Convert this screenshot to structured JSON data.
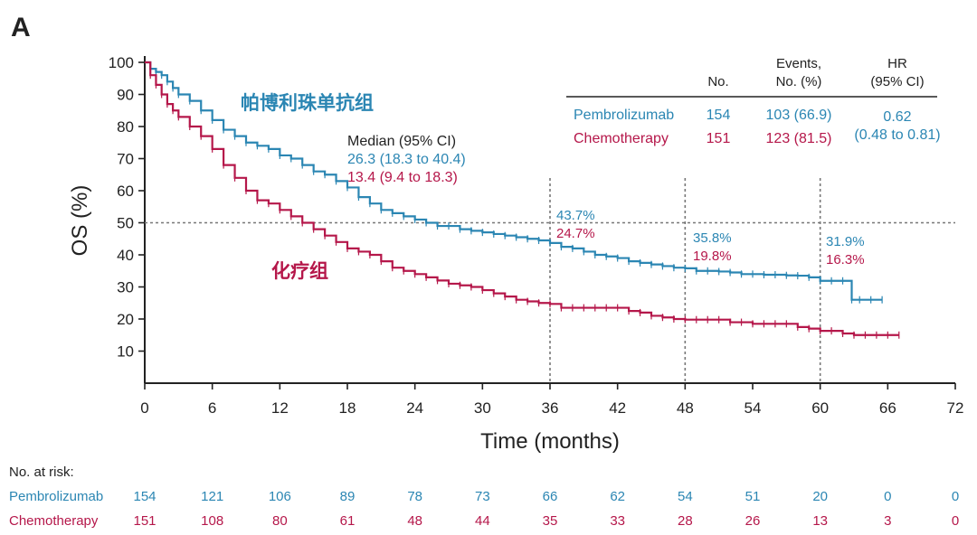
{
  "panel_label": "A",
  "colors": {
    "pembro": "#2b86b3",
    "chemo": "#b5174a",
    "axis": "#222222",
    "ref": "#777777"
  },
  "labels": {
    "pembro_cn": "帕博利珠单抗组",
    "chemo_cn": "化疗组"
  },
  "median": {
    "title": "Median (95% CI)",
    "pembro": "26.3 (18.3 to 40.4)",
    "chemo": "13.4 (9.4 to 18.3)"
  },
  "table": {
    "headers": {
      "no": "No.",
      "events_1": "Events,",
      "events_2": "No. (%)",
      "hr_1": "HR",
      "hr_2": "(95% CI)"
    },
    "rows": [
      {
        "name": "Pembrolizumab",
        "no": "154",
        "events": "103 (66.9)"
      },
      {
        "name": "Chemotherapy",
        "no": "151",
        "events": "123 (81.5)"
      }
    ],
    "hr": "0.62",
    "ci": "(0.48 to 0.81)"
  },
  "landmarks": [
    {
      "time": "36",
      "pembro": "43.7%",
      "chemo": "24.7%"
    },
    {
      "time": "48",
      "pembro": "35.8%",
      "chemo": "19.8%"
    },
    {
      "time": "60",
      "pembro": "31.9%",
      "chemo": "16.3%"
    }
  ],
  "risk": {
    "title": "No. at risk:",
    "rows": [
      {
        "name": "Pembrolizumab",
        "values": [
          "154",
          "121",
          "106",
          "89",
          "78",
          "73",
          "66",
          "62",
          "54",
          "51",
          "20",
          "0",
          "0"
        ]
      },
      {
        "name": "Chemotherapy",
        "values": [
          "151",
          "108",
          "80",
          "61",
          "48",
          "44",
          "35",
          "33",
          "28",
          "26",
          "13",
          "3",
          "0"
        ]
      }
    ]
  },
  "chart_data": {
    "type": "line",
    "title": "",
    "xlabel": "Time (months)",
    "ylabel": "OS (%)",
    "xlim": [
      0,
      72
    ],
    "ylim": [
      0,
      100
    ],
    "xticks": [
      "0",
      "6",
      "12",
      "18",
      "24",
      "30",
      "36",
      "42",
      "48",
      "54",
      "60",
      "66",
      "72"
    ],
    "yticks": [
      "10",
      "20",
      "30",
      "40",
      "50",
      "60",
      "70",
      "80",
      "90",
      "100"
    ],
    "reference_lines": {
      "y": 50,
      "x": [
        36,
        48,
        60
      ]
    },
    "series": [
      {
        "name": "Pembrolizumab",
        "x": [
          0,
          0.5,
          1,
          1.5,
          2,
          2.5,
          3,
          4,
          5,
          6,
          7,
          8,
          9,
          10,
          11,
          12,
          13,
          14,
          15,
          16,
          17,
          18,
          19,
          20,
          21,
          22,
          23,
          24,
          25,
          26,
          27,
          28,
          29,
          30,
          31,
          32,
          33,
          34,
          35,
          36,
          37,
          38,
          39,
          40,
          41,
          42,
          43,
          44,
          45,
          46,
          47,
          48,
          49,
          50,
          51,
          52,
          53,
          54,
          55,
          56,
          57,
          58,
          59,
          60,
          61,
          62,
          62.8,
          63.5,
          64.5,
          65.5
        ],
        "y": [
          100,
          98,
          97,
          96,
          94,
          92,
          90,
          88,
          85,
          82,
          79,
          77,
          75,
          74,
          73,
          71,
          70,
          68,
          66,
          65,
          63,
          61,
          58,
          56,
          54,
          53,
          52,
          51,
          50,
          49,
          49,
          48,
          47.5,
          47,
          46.5,
          46,
          45.5,
          45,
          44.5,
          43.7,
          42.5,
          42,
          41,
          40,
          39.5,
          39,
          38,
          37.5,
          37,
          36.5,
          36,
          35.8,
          35,
          35,
          34.8,
          34.5,
          34,
          34,
          33.8,
          33.8,
          33.6,
          33.5,
          33,
          31.9,
          31.9,
          31.9,
          26,
          26,
          26,
          26
        ]
      },
      {
        "name": "Chemotherapy",
        "x": [
          0,
          0.5,
          1,
          1.5,
          2,
          2.5,
          3,
          4,
          5,
          6,
          7,
          8,
          9,
          10,
          11,
          12,
          13,
          14,
          15,
          16,
          17,
          18,
          19,
          20,
          21,
          22,
          23,
          24,
          25,
          26,
          27,
          28,
          29,
          30,
          31,
          32,
          33,
          34,
          35,
          36,
          37,
          38,
          39,
          40,
          41,
          42,
          43,
          44,
          45,
          46,
          47,
          48,
          49,
          50,
          51,
          52,
          53,
          54,
          55,
          56,
          57,
          58,
          59,
          60,
          61,
          62,
          63,
          64,
          65,
          66,
          67
        ],
        "y": [
          100,
          96,
          93,
          90,
          87,
          85,
          83,
          80,
          77,
          73,
          68,
          64,
          60,
          57,
          56,
          54,
          52,
          50,
          48,
          46,
          44,
          42,
          41,
          40,
          38,
          36,
          35,
          34,
          33,
          32,
          31,
          30.5,
          30,
          29,
          28,
          27,
          26,
          25.5,
          25,
          24.7,
          23.5,
          23.5,
          23.5,
          23.5,
          23.5,
          23.5,
          22.5,
          22,
          21,
          20.5,
          20,
          19.8,
          19.8,
          19.8,
          19.8,
          19,
          19,
          18.5,
          18.5,
          18.5,
          18.5,
          17.5,
          17,
          16.3,
          16.3,
          15.5,
          15,
          15,
          15,
          15,
          15
        ]
      }
    ]
  }
}
